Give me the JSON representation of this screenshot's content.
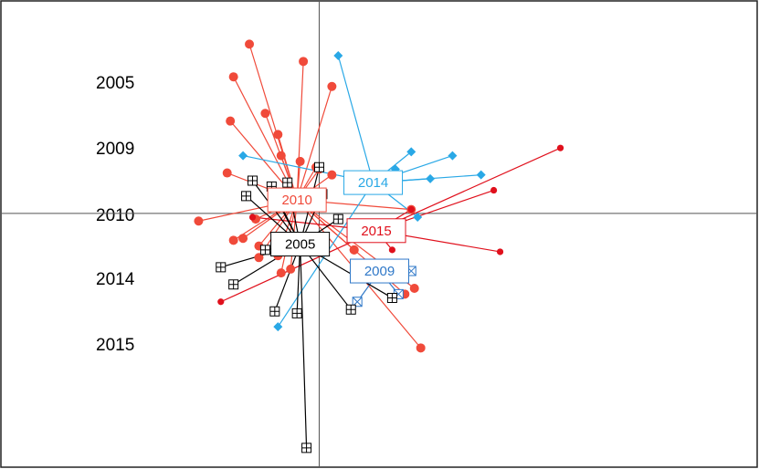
{
  "chart_data": {
    "type": "scatter",
    "title": "",
    "xlabel": "",
    "ylabel": "",
    "grid": false,
    "xlim": [
      -1,
      1.38
    ],
    "ylim": [
      -1.32,
      1.1
    ],
    "row_labels": [
      "2005",
      "2009",
      "2010",
      "2014",
      "2015"
    ],
    "groups": [
      {
        "name": "2010",
        "color": "#f04a3a",
        "marker": "circle",
        "centroid": [
          -0.07,
          0.07
        ],
        "points": [
          [
            -0.22,
            0.88
          ],
          [
            -0.27,
            0.71
          ],
          [
            -0.05,
            0.79
          ],
          [
            0.04,
            0.66
          ],
          [
            -0.28,
            0.48
          ],
          [
            -0.17,
            0.52
          ],
          [
            -0.13,
            0.41
          ],
          [
            -0.29,
            0.21
          ],
          [
            -0.12,
            0.3
          ],
          [
            -0.06,
            0.27
          ],
          [
            0.0,
            0.23
          ],
          [
            -0.38,
            -0.04
          ],
          [
            -0.2,
            -0.03
          ],
          [
            -0.27,
            -0.14
          ],
          [
            -0.19,
            -0.17
          ],
          [
            -0.13,
            -0.22
          ],
          [
            -0.19,
            -0.23
          ],
          [
            -0.09,
            -0.29
          ],
          [
            -0.12,
            -0.31
          ],
          [
            0.27,
            -0.42
          ],
          [
            0.32,
            -0.7
          ],
          [
            0.29,
            0.02
          ],
          [
            0.11,
            -0.19
          ],
          [
            -0.01,
            0.24
          ],
          [
            -0.24,
            -0.13
          ],
          [
            0.04,
            0.2
          ],
          [
            0.11,
            -0.19
          ],
          [
            0.3,
            -0.39
          ]
        ]
      },
      {
        "name": "2014",
        "color": "#29a8e6",
        "marker": "diamond",
        "centroid": [
          0.17,
          0.16
        ],
        "points": [
          [
            0.06,
            0.82
          ],
          [
            -0.24,
            0.3
          ],
          [
            0.29,
            0.32
          ],
          [
            0.42,
            0.3
          ],
          [
            0.35,
            0.18
          ],
          [
            0.51,
            0.2
          ],
          [
            0.31,
            -0.02
          ],
          [
            -0.13,
            -0.59
          ],
          [
            0.24,
            0.23
          ],
          [
            0.13,
            0.2
          ]
        ]
      },
      {
        "name": "2015",
        "color": "#e0101c",
        "marker": "dot",
        "centroid": [
          0.18,
          -0.09
        ],
        "points": [
          [
            0.76,
            0.34
          ],
          [
            0.55,
            0.12
          ],
          [
            0.57,
            -0.2
          ],
          [
            -0.31,
            -0.46
          ],
          [
            -0.21,
            -0.02
          ],
          [
            0.29,
            0.02
          ],
          [
            0.23,
            -0.19
          ]
        ]
      },
      {
        "name": "2009",
        "color": "#2f78c8",
        "marker": "square-x",
        "centroid": [
          0.19,
          -0.3
        ],
        "points": [
          [
            0.12,
            -0.46
          ],
          [
            0.25,
            -0.42
          ],
          [
            0.29,
            -0.3
          ]
        ]
      },
      {
        "name": "2005",
        "color": "#000000",
        "marker": "square-cross",
        "centroid": [
          -0.06,
          -0.16
        ],
        "points": [
          [
            -0.31,
            -0.28
          ],
          [
            -0.27,
            -0.37
          ],
          [
            -0.14,
            -0.51
          ],
          [
            -0.07,
            -0.52
          ],
          [
            0.1,
            -0.5
          ],
          [
            0.23,
            -0.44
          ],
          [
            -0.04,
            -1.22
          ],
          [
            0.0,
            0.24
          ],
          [
            -0.1,
            0.16
          ],
          [
            -0.21,
            0.17
          ],
          [
            -0.15,
            0.14
          ],
          [
            -0.23,
            0.09
          ],
          [
            0.01,
            0.1
          ],
          [
            0.06,
            -0.03
          ],
          [
            -0.13,
            0.06
          ],
          [
            -0.17,
            -0.19
          ]
        ]
      }
    ]
  }
}
